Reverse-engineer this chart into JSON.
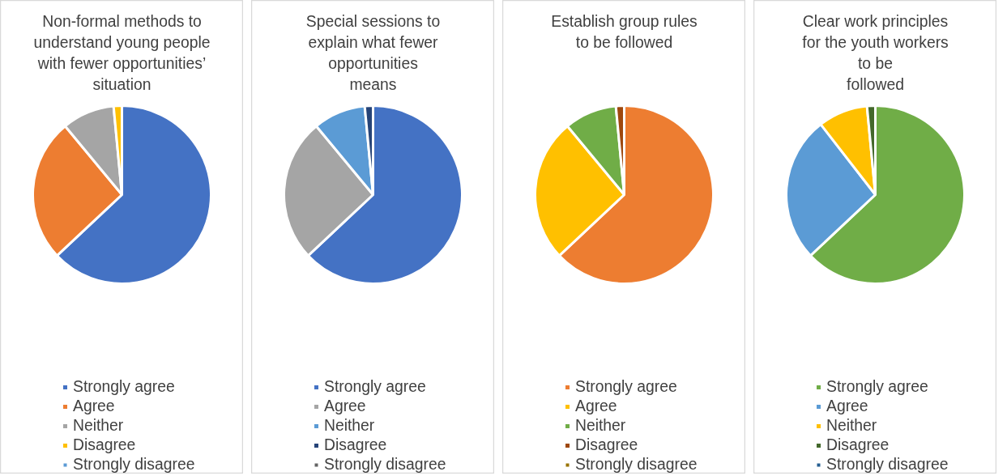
{
  "chart_data": [
    {
      "type": "pie",
      "title": "Non-formal methods to\nunderstand young people\nwith fewer opportunities’\nsituation",
      "categories": [
        "Strongly agree",
        "Agree",
        "Neither",
        "Disagree",
        "Strongly disagree"
      ],
      "values": [
        63,
        26,
        9.5,
        1.5,
        0
      ],
      "colors": [
        "#4472c4",
        "#ed7d31",
        "#a5a5a5",
        "#ffc000",
        "#5b9bd5"
      ],
      "legend": "bottom"
    },
    {
      "type": "pie",
      "title": "Special sessions to\nexplain what fewer\nopportunities\nmeans",
      "categories": [
        "Strongly agree",
        "Agree",
        "Neither",
        "Disagree",
        "Strongly disagree"
      ],
      "values": [
        63,
        26,
        9.5,
        1.5,
        0
      ],
      "colors": [
        "#4472c4",
        "#a5a5a5",
        "#5b9bd5",
        "#264478",
        "#636363"
      ],
      "legend": "bottom"
    },
    {
      "type": "pie",
      "title": "Establish group rules\nto be followed",
      "categories": [
        "Strongly agree",
        "Agree",
        "Neither",
        "Disagree",
        "Strongly disagree"
      ],
      "values": [
        63,
        26,
        9.5,
        1.5,
        0
      ],
      "colors": [
        "#ed7d31",
        "#ffc000",
        "#70ad47",
        "#9e480e",
        "#997300"
      ],
      "legend": "bottom"
    },
    {
      "type": "pie",
      "title": "Clear work principles\nfor the youth workers\nto be\nfollowed",
      "categories": [
        "Strongly agree",
        "Agree",
        "Neither",
        "Disagree",
        "Strongly disagree"
      ],
      "values": [
        63,
        26.5,
        9,
        1.5,
        0
      ],
      "colors": [
        "#70ad47",
        "#5b9bd5",
        "#ffc000",
        "#43682b",
        "#255e91"
      ],
      "legend": "bottom"
    }
  ]
}
